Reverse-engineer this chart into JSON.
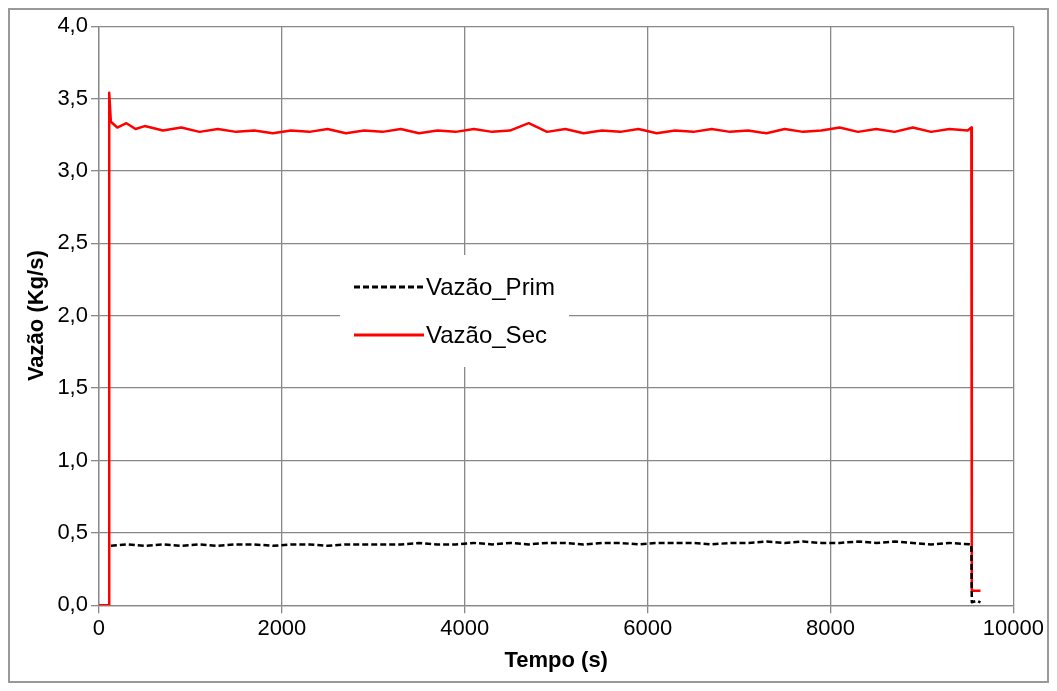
{
  "chart_data": {
    "type": "line",
    "xlabel": "Tempo (s)",
    "ylabel": "Vazão (Kg/s)",
    "xlim": [
      0,
      10000
    ],
    "xticks": [
      0,
      2000,
      4000,
      6000,
      8000,
      10000
    ],
    "ylim": [
      0,
      4
    ],
    "yticks": [
      {
        "value": 0,
        "label": "0,0"
      },
      {
        "value": 0.5,
        "label": "0,5"
      },
      {
        "value": 1,
        "label": "1,0"
      },
      {
        "value": 1.5,
        "label": "1,5"
      },
      {
        "value": 2,
        "label": "2,0"
      },
      {
        "value": 2.5,
        "label": "2,5"
      },
      {
        "value": 3,
        "label": "3,0"
      },
      {
        "value": 3.5,
        "label": "3,5"
      },
      {
        "value": 4,
        "label": "4,0"
      }
    ],
    "grid": true,
    "legend": "left",
    "marker": "none",
    "series": [
      {
        "name": "Vazão_Prim",
        "color": "#000000",
        "line_style": "dashed",
        "x": [
          130,
          300,
          500,
          700,
          900,
          1100,
          1300,
          1500,
          1700,
          1900,
          2100,
          2300,
          2500,
          2700,
          2900,
          3100,
          3300,
          3500,
          3700,
          3900,
          4100,
          4300,
          4500,
          4700,
          4900,
          5100,
          5300,
          5500,
          5700,
          5900,
          6100,
          6300,
          6500,
          6700,
          6900,
          7100,
          7300,
          7500,
          7700,
          7900,
          8100,
          8300,
          8500,
          8700,
          8900,
          9100,
          9300,
          9540,
          9545,
          9600,
          9640
        ],
        "values": [
          0.41,
          0.42,
          0.41,
          0.42,
          0.41,
          0.42,
          0.41,
          0.42,
          0.42,
          0.41,
          0.42,
          0.42,
          0.41,
          0.42,
          0.42,
          0.42,
          0.42,
          0.43,
          0.42,
          0.42,
          0.43,
          0.42,
          0.43,
          0.42,
          0.43,
          0.43,
          0.42,
          0.43,
          0.43,
          0.42,
          0.43,
          0.43,
          0.43,
          0.42,
          0.43,
          0.43,
          0.44,
          0.43,
          0.44,
          0.43,
          0.43,
          0.44,
          0.43,
          0.44,
          0.43,
          0.42,
          0.43,
          0.42,
          0.02,
          0.03,
          0.02
        ]
      },
      {
        "name": "Vazão_Sec",
        "color": "#ff0000",
        "line_style": "solid",
        "x": [
          0,
          110,
          112,
          130,
          200,
          300,
          400,
          500,
          700,
          900,
          1100,
          1300,
          1500,
          1700,
          1900,
          2100,
          2300,
          2500,
          2700,
          2900,
          3100,
          3300,
          3500,
          3700,
          3900,
          4100,
          4300,
          4500,
          4700,
          4900,
          5100,
          5300,
          5500,
          5700,
          5900,
          6100,
          6300,
          6500,
          6700,
          6900,
          7100,
          7300,
          7500,
          7700,
          7900,
          8100,
          8300,
          8500,
          8700,
          8900,
          9100,
          9300,
          9500,
          9540,
          9545,
          9640
        ],
        "values": [
          0,
          0,
          3.54,
          3.34,
          3.3,
          3.33,
          3.29,
          3.31,
          3.28,
          3.3,
          3.27,
          3.29,
          3.27,
          3.28,
          3.26,
          3.28,
          3.27,
          3.29,
          3.26,
          3.28,
          3.27,
          3.29,
          3.26,
          3.28,
          3.27,
          3.29,
          3.27,
          3.28,
          3.33,
          3.27,
          3.29,
          3.26,
          3.28,
          3.27,
          3.29,
          3.26,
          3.28,
          3.27,
          3.29,
          3.27,
          3.28,
          3.26,
          3.29,
          3.27,
          3.28,
          3.3,
          3.27,
          3.29,
          3.27,
          3.3,
          3.27,
          3.29,
          3.28,
          3.3,
          0.1,
          0.1
        ]
      }
    ]
  }
}
